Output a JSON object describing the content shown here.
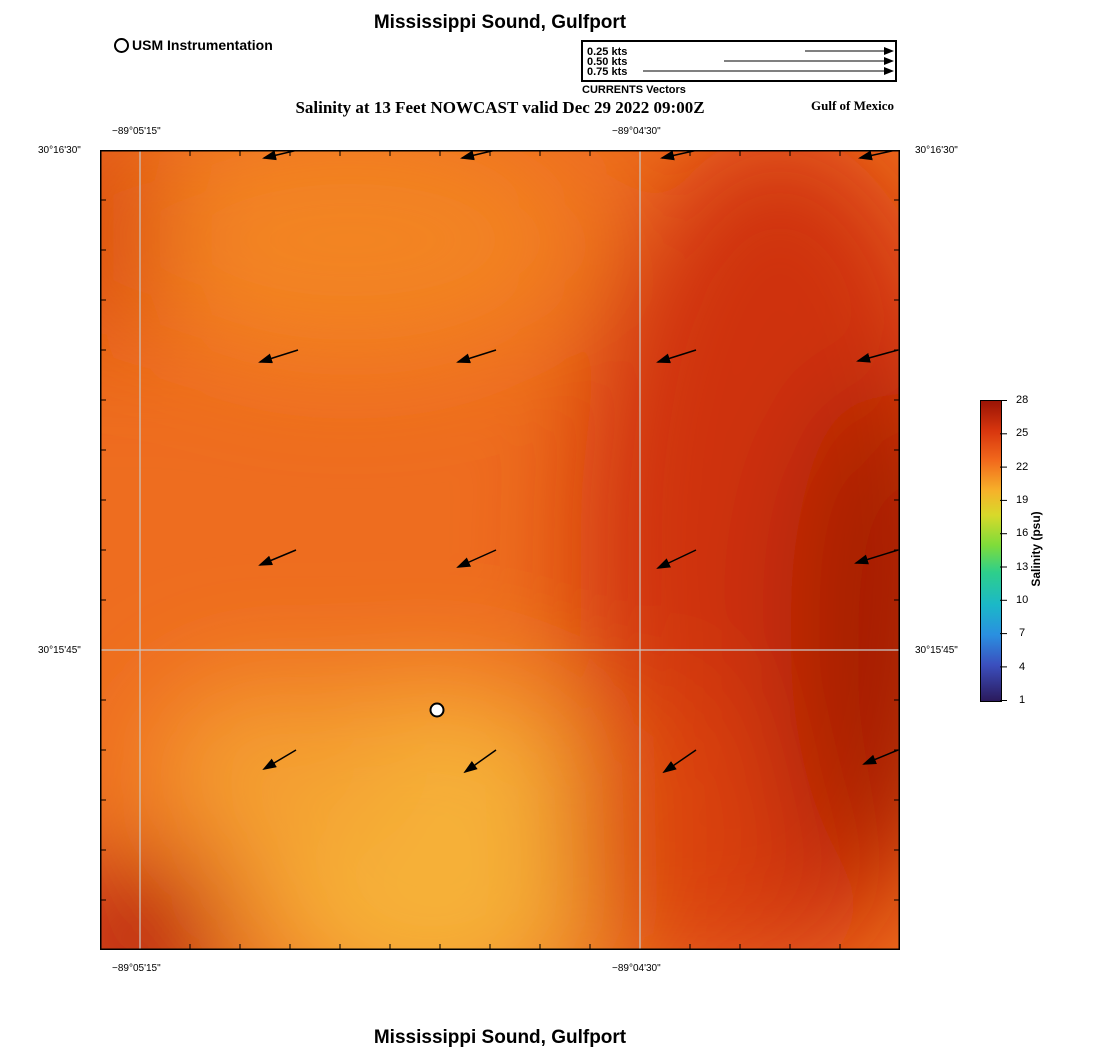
{
  "header": {
    "title": "Mississippi Sound, Gulfport",
    "subtitle": "Salinity at 13 Feet NOWCAST valid Dec 29 2022 09:00Z",
    "region_label": "Gulf of Mexico",
    "footer_title": "Mississippi Sound, Gulfport"
  },
  "station_legend": {
    "label": "USM Instrumentation",
    "icon": "open-circle-marker"
  },
  "vector_legend": {
    "rows": [
      {
        "label": "0.25 kts",
        "speed_kts": 0.25
      },
      {
        "label": "0.50 kts",
        "speed_kts": 0.5
      },
      {
        "label": "0.75 kts",
        "speed_kts": 0.75
      }
    ],
    "caption": "CURRENTS Vectors"
  },
  "map": {
    "lon_ticks": [
      "−89°05'15\"",
      "−89°04'30\""
    ],
    "lat_ticks": [
      "30°16'30\"",
      "30°15'45\""
    ],
    "station": {
      "name": "USM Instrumentation",
      "lon_label": "",
      "lat_label": ""
    },
    "colors": {
      "grid": "#c8c8c8",
      "frame": "#000000",
      "arrow": "#000000",
      "station_fill": "#ffffff"
    }
  },
  "colorbar": {
    "title": "Salinity (psu)",
    "ticks": [
      "28",
      "25",
      "22",
      "19",
      "16",
      "13",
      "10",
      "7",
      "4",
      "1"
    ],
    "min": 1,
    "max": 28
  }
}
